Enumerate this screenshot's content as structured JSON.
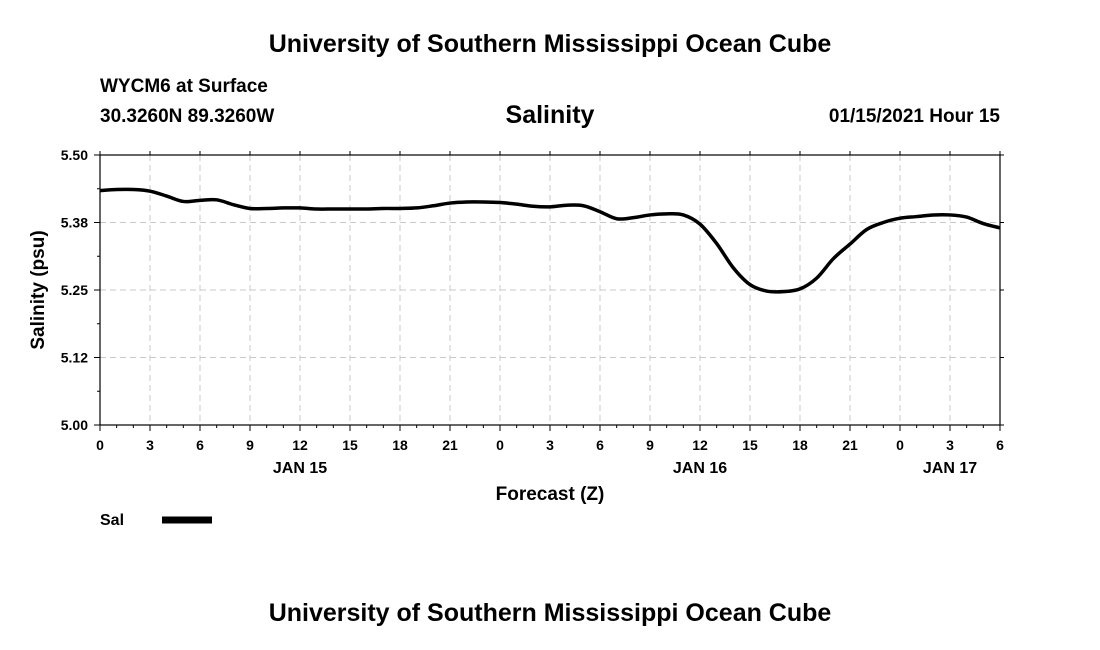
{
  "header": {
    "title": "University of Southern Mississippi Ocean Cube",
    "station": "WYCM6 at Surface",
    "coords": "30.3260N 89.3260W",
    "variable": "Salinity",
    "datetime": "01/15/2021 Hour 15"
  },
  "footer": {
    "title": "University of Southern Mississippi Ocean Cube"
  },
  "chart_data": {
    "type": "line",
    "xlabel": "Forecast (Z)",
    "ylabel": "Salinity (psu)",
    "ylim": [
      5.0,
      5.5
    ],
    "xlim_hours": [
      0,
      54
    ],
    "y_ticks": [
      "5.00",
      "5.12",
      "5.25",
      "5.38",
      "5.50"
    ],
    "x_ticks": [
      "0",
      "3",
      "6",
      "9",
      "12",
      "15",
      "18",
      "21",
      "0",
      "3",
      "6",
      "9",
      "12",
      "15",
      "18",
      "21",
      "0",
      "3",
      "6"
    ],
    "date_labels": [
      {
        "label": "JAN 15",
        "hour": 12
      },
      {
        "label": "JAN 16",
        "hour": 36
      },
      {
        "label": "JAN 17",
        "hour": 51
      }
    ],
    "grid": true,
    "legend": "bottom-left",
    "line_color": "#000000",
    "series": [
      {
        "name": "Sal",
        "x": [
          0,
          1,
          2,
          3,
          4,
          5,
          6,
          7,
          8,
          9,
          10,
          11,
          12,
          13,
          14,
          15,
          16,
          17,
          18,
          19,
          20,
          21,
          22,
          23,
          24,
          25,
          26,
          27,
          28,
          29,
          30,
          31,
          32,
          33,
          34,
          35,
          36,
          37,
          38,
          39,
          40,
          41,
          42,
          43,
          44,
          45,
          46,
          47,
          48,
          49,
          50,
          51,
          52,
          53,
          54
        ],
        "values": [
          5.434,
          5.436,
          5.436,
          5.433,
          5.424,
          5.414,
          5.416,
          5.417,
          5.408,
          5.401,
          5.401,
          5.402,
          5.402,
          5.4,
          5.4,
          5.4,
          5.4,
          5.401,
          5.401,
          5.402,
          5.406,
          5.411,
          5.413,
          5.413,
          5.412,
          5.409,
          5.405,
          5.404,
          5.407,
          5.406,
          5.395,
          5.382,
          5.384,
          5.389,
          5.391,
          5.389,
          5.372,
          5.336,
          5.291,
          5.26,
          5.248,
          5.247,
          5.252,
          5.272,
          5.308,
          5.335,
          5.362,
          5.375,
          5.383,
          5.386,
          5.389,
          5.389,
          5.385,
          5.373,
          5.365
        ]
      }
    ]
  }
}
